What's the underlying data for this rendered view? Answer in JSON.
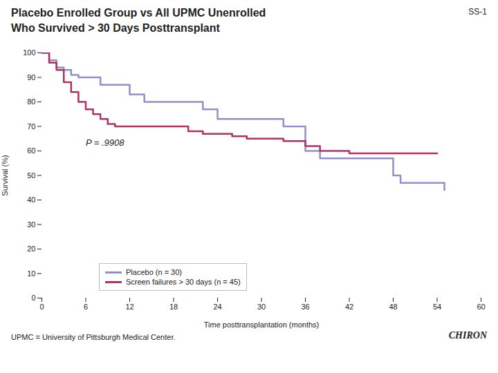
{
  "chart_data": {
    "type": "step",
    "title": "Placebo Enrolled Group vs All UPMC Unenrolled",
    "subtitle": "Who Survived > 30 Days Posttransplant",
    "caption": "UPMC = University of Pittsburgh Medical Center.",
    "annotations": [
      {
        "text": "P = .9908",
        "x": 6,
        "y": 62
      },
      {
        "text": "SS-1"
      },
      {
        "text": "CHIRON"
      }
    ],
    "xlabel": "Time posttransplantation (months)",
    "ylabel": "Survival (%)",
    "xlim": [
      0,
      60
    ],
    "ylim": [
      0,
      100
    ],
    "xticks": [
      0,
      6,
      12,
      18,
      24,
      30,
      36,
      42,
      48,
      54,
      60
    ],
    "yticks": [
      0,
      10,
      20,
      30,
      40,
      50,
      60,
      70,
      80,
      90,
      100
    ],
    "grid": false,
    "legend": "lower left",
    "series": [
      {
        "name": "Placebo (n = 30)",
        "color": "#9090c8",
        "x": [
          0,
          1,
          2,
          3,
          4,
          5,
          6,
          8,
          9,
          10,
          12,
          13,
          14,
          16,
          18,
          22,
          24,
          26,
          30,
          33,
          36,
          38,
          42,
          44,
          48,
          49,
          54,
          55
        ],
        "values": [
          100,
          97,
          94,
          93,
          91,
          90,
          90,
          87,
          87,
          87,
          83,
          83,
          80,
          80,
          80,
          77,
          73,
          73,
          73,
          70,
          60,
          57,
          57,
          57,
          50,
          47,
          47,
          44
        ]
      },
      {
        "name": "Screen failures > 30 days (n = 45)",
        "color": "#b03060",
        "x": [
          0,
          1,
          2,
          3,
          4,
          5,
          6,
          7,
          8,
          9,
          10,
          12,
          14,
          16,
          18,
          20,
          22,
          24,
          26,
          28,
          30,
          33,
          35,
          36,
          38,
          42,
          44,
          48,
          50,
          54
        ],
        "values": [
          100,
          96,
          93,
          88,
          84,
          80,
          77,
          75,
          73,
          71,
          70,
          70,
          70,
          70,
          70,
          68,
          67,
          67,
          66,
          65,
          65,
          64,
          64,
          62,
          60,
          59,
          59,
          59,
          59,
          59
        ]
      }
    ]
  }
}
